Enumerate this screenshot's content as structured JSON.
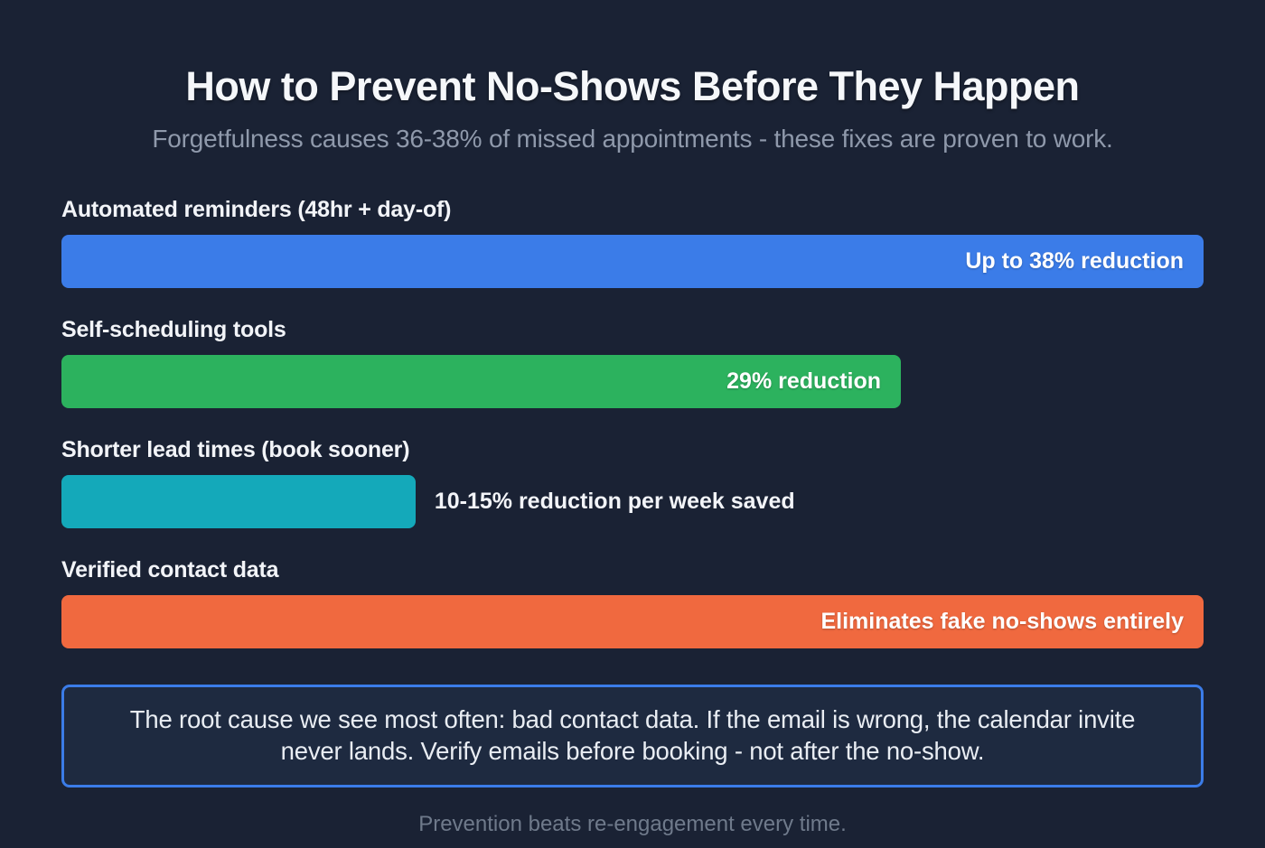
{
  "header": {
    "title": "How to Prevent No-Shows Before They Happen",
    "subtitle": "Forgetfulness causes 36-38% of missed appointments - these fixes are proven to work."
  },
  "chart_data": {
    "type": "bar",
    "orientation": "horizontal",
    "title": "How to Prevent No-Shows Before They Happen",
    "categories": [
      "Automated reminders (48hr + day-of)",
      "Self-scheduling tools",
      "Shorter lead times (book sooner)",
      "Verified contact data"
    ],
    "series": [
      {
        "name": "Relative bar length (% of track width)",
        "values": [
          100,
          73.5,
          31,
          100
        ]
      }
    ],
    "bars": [
      {
        "label": "Automated reminders (48hr + day-of)",
        "value_pct": 100,
        "value_label": "Up to 38% reduction",
        "color": "#3b7ce8",
        "value_inside": true
      },
      {
        "label": "Self-scheduling tools",
        "value_pct": 73.5,
        "value_label": "29% reduction",
        "color": "#2cb25e",
        "value_inside": true
      },
      {
        "label": "Shorter lead times (book sooner)",
        "value_pct": 31,
        "value_label": "10-15% reduction per week saved",
        "color": "#14a9ba",
        "value_inside": false
      },
      {
        "label": "Verified contact data",
        "value_pct": 100,
        "value_label": "Eliminates fake no-shows entirely",
        "color": "#f0693f",
        "value_inside": true
      }
    ],
    "legend": false,
    "grid": false,
    "axes": false
  },
  "callout": {
    "text": "The root cause we see most often: bad contact data. If the email is wrong, the calendar invite never lands. Verify emails before booking - not after the no-show."
  },
  "footer": {
    "text": "Prevention beats re-engagement every time."
  },
  "colors": {
    "background": "#1a2234",
    "callout_background": "#1e2a40",
    "accent_border": "#3b7ce8",
    "title_text": "#f5f7fa",
    "subtitle_text": "#8f99ab",
    "footer_text": "#6f7a8b"
  }
}
